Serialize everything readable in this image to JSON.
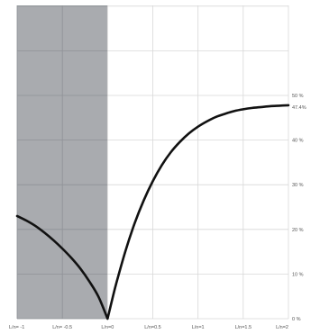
{
  "chart_data": {
    "type": "line",
    "title": "",
    "xlabel": "",
    "ylabel": "",
    "xlim": [
      -1,
      2
    ],
    "ylim": [
      0,
      50
    ],
    "x_ticks": [
      {
        "value": -1,
        "label": "L/n= -1"
      },
      {
        "value": -0.5,
        "label": "L/n= -0.5"
      },
      {
        "value": 0,
        "label": "L/n=0"
      },
      {
        "value": 0.5,
        "label": "L/n=0.5"
      },
      {
        "value": 1,
        "label": "L/n=1"
      },
      {
        "value": 1.5,
        "label": "L/n=1.5"
      },
      {
        "value": 2,
        "label": "L/n=2"
      }
    ],
    "y_ticks": [
      {
        "value": 0,
        "label": "0 %"
      },
      {
        "value": 10,
        "label": "10 %"
      },
      {
        "value": 20,
        "label": "20 %"
      },
      {
        "value": 30,
        "label": "30 %"
      },
      {
        "value": 40,
        "label": "40 %"
      },
      {
        "value": 47.4,
        "label": "47.4%"
      },
      {
        "value": 50,
        "label": "50 %"
      }
    ],
    "y_grid_extra": [
      60,
      70
    ],
    "shaded_region": {
      "x_from": -1,
      "x_to": 0,
      "color": "#a9abaf"
    },
    "grid": true,
    "series": [
      {
        "color": "#111111",
        "x": [
          -1,
          -0.9,
          -0.8,
          -0.7,
          -0.6,
          -0.5,
          -0.4,
          -0.3,
          -0.2,
          -0.1,
          0,
          0.05,
          0.1,
          0.2,
          0.3,
          0.4,
          0.5,
          0.6,
          0.7,
          0.8,
          0.9,
          1.0,
          1.1,
          1.2,
          1.3,
          1.4,
          1.5,
          1.6,
          1.7,
          1.8,
          1.9,
          2.0
        ],
        "y": [
          23.0,
          22.0,
          20.8,
          19.3,
          17.6,
          15.7,
          13.6,
          11.2,
          8.3,
          4.9,
          0,
          4.2,
          8.2,
          15.3,
          21.4,
          26.5,
          30.8,
          34.4,
          37.3,
          39.6,
          41.5,
          43.0,
          44.2,
          45.2,
          45.9,
          46.5,
          46.9,
          47.2,
          47.4,
          47.6,
          47.7,
          47.8
        ]
      }
    ]
  }
}
